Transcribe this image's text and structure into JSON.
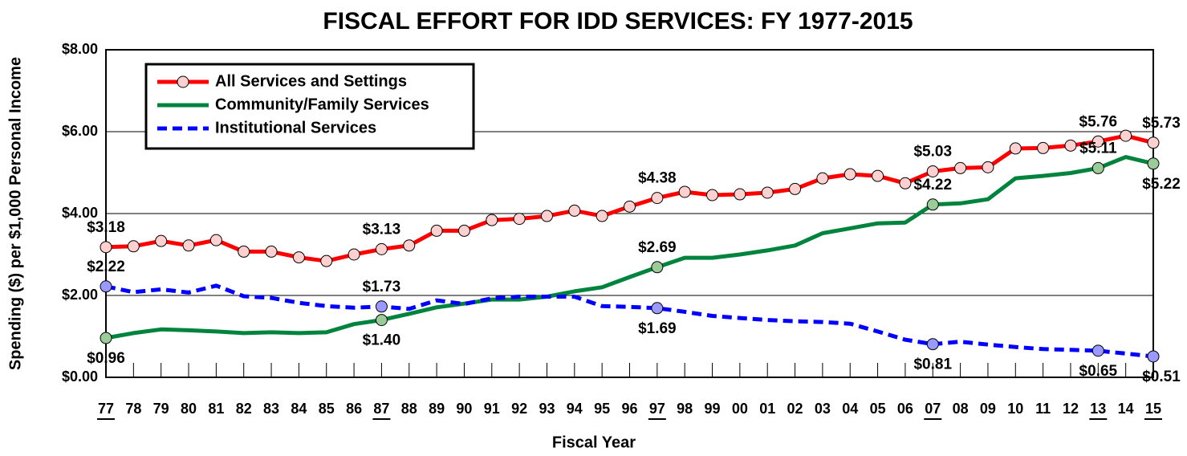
{
  "chart_data": {
    "type": "line",
    "title": "FISCAL EFFORT FOR IDD SERVICES: FY 1977-2015",
    "x_label": "Fiscal Year",
    "y_label": "Spending ($) per $1,000 Personal Income",
    "categories": [
      "77",
      "78",
      "79",
      "80",
      "81",
      "82",
      "83",
      "84",
      "85",
      "86",
      "87",
      "88",
      "89",
      "90",
      "91",
      "92",
      "93",
      "94",
      "95",
      "96",
      "97",
      "98",
      "99",
      "00",
      "01",
      "02",
      "03",
      "04",
      "05",
      "06",
      "07",
      "08",
      "09",
      "10",
      "11",
      "12",
      "13",
      "14",
      "15"
    ],
    "ylim": [
      0,
      8
    ],
    "yticks": [
      {
        "value": 0,
        "label": "$0.00"
      },
      {
        "value": 2,
        "label": "$2.00"
      },
      {
        "value": 4,
        "label": "$4.00"
      },
      {
        "value": 6,
        "label": "$6.00"
      },
      {
        "value": 8,
        "label": "$8.00"
      }
    ],
    "grid": true,
    "legend": "upper left",
    "series": [
      {
        "name": "All Services and Settings",
        "color": "#ff0000",
        "values": [
          3.18,
          3.2,
          3.33,
          3.22,
          3.35,
          3.07,
          3.07,
          2.93,
          2.84,
          3.0,
          3.13,
          3.22,
          3.58,
          3.58,
          3.84,
          3.87,
          3.94,
          4.07,
          3.94,
          4.17,
          4.38,
          4.53,
          4.45,
          4.47,
          4.51,
          4.6,
          4.86,
          4.96,
          4.92,
          4.74,
          5.03,
          5.11,
          5.13,
          5.59,
          5.6,
          5.66,
          5.76,
          5.9,
          5.73
        ],
        "value_labels": [
          "$3.18",
          null,
          null,
          null,
          null,
          null,
          null,
          null,
          null,
          null,
          "$3.13",
          null,
          null,
          null,
          null,
          null,
          null,
          null,
          null,
          null,
          "$4.38",
          null,
          null,
          null,
          null,
          null,
          null,
          null,
          null,
          null,
          "$5.03",
          null,
          null,
          null,
          null,
          null,
          "$5.76",
          null,
          "$5.73"
        ]
      },
      {
        "name": "Community/Family Services",
        "color": "#00843d",
        "values": [
          0.96,
          1.08,
          1.17,
          1.15,
          1.12,
          1.08,
          1.1,
          1.08,
          1.1,
          1.3,
          1.4,
          1.55,
          1.71,
          1.8,
          1.9,
          1.9,
          1.97,
          2.1,
          2.2,
          2.45,
          2.69,
          2.92,
          2.92,
          3.0,
          3.1,
          3.22,
          3.52,
          3.64,
          3.76,
          3.78,
          4.22,
          4.25,
          4.35,
          4.86,
          4.92,
          4.99,
          5.11,
          5.38,
          5.22
        ],
        "value_labels": [
          "$0.96",
          null,
          null,
          null,
          null,
          null,
          null,
          null,
          null,
          null,
          "$1.40",
          null,
          null,
          null,
          null,
          null,
          null,
          null,
          null,
          null,
          "$2.69",
          null,
          null,
          null,
          null,
          null,
          null,
          null,
          null,
          null,
          "$4.22",
          null,
          null,
          null,
          null,
          null,
          "$5.11",
          null,
          "$5.22"
        ]
      },
      {
        "name": "Institutional Services",
        "color": "#0000ff",
        "dashed": true,
        "values": [
          2.22,
          2.08,
          2.15,
          2.07,
          2.24,
          1.98,
          1.94,
          1.82,
          1.74,
          1.7,
          1.73,
          1.67,
          1.88,
          1.79,
          1.93,
          1.97,
          1.97,
          1.97,
          1.74,
          1.72,
          1.69,
          1.6,
          1.5,
          1.45,
          1.4,
          1.37,
          1.35,
          1.31,
          1.12,
          0.92,
          0.81,
          0.87,
          0.8,
          0.74,
          0.69,
          0.67,
          0.65,
          0.58,
          0.51
        ],
        "value_labels": [
          "$2.22",
          null,
          null,
          null,
          null,
          null,
          null,
          null,
          null,
          null,
          "$1.73",
          null,
          null,
          null,
          null,
          null,
          null,
          null,
          null,
          null,
          "$1.69",
          null,
          null,
          null,
          null,
          null,
          null,
          null,
          null,
          null,
          "$0.81",
          null,
          null,
          null,
          null,
          null,
          "$0.65",
          null,
          "$0.51"
        ]
      }
    ]
  }
}
